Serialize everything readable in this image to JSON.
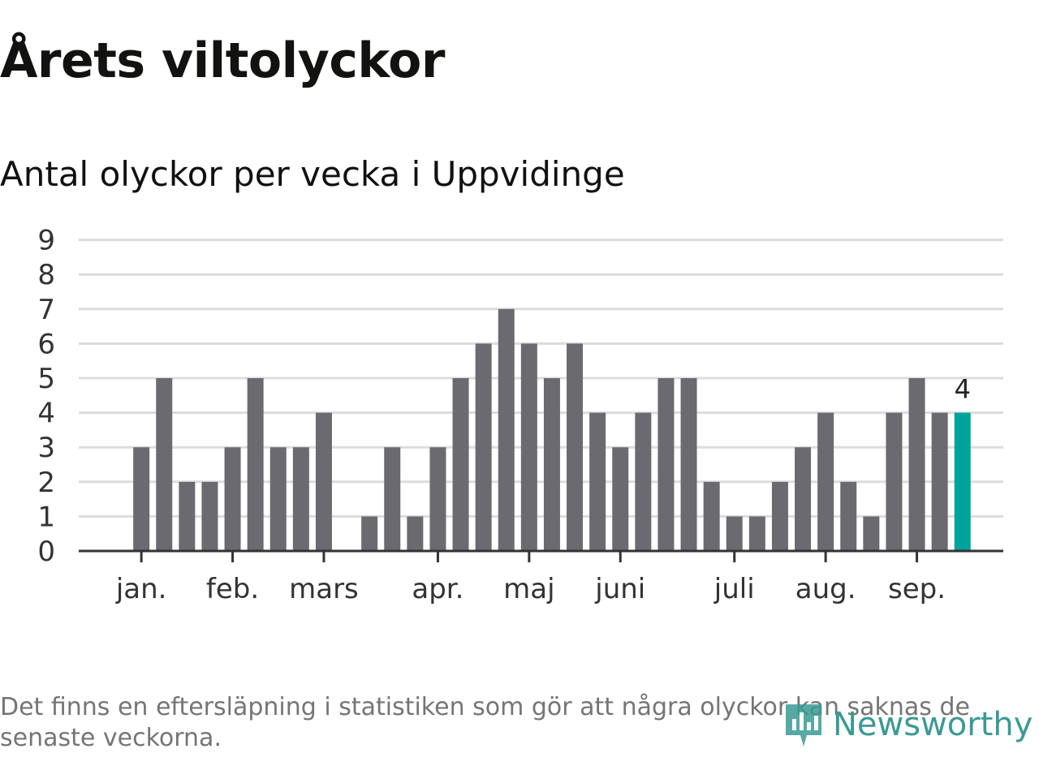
{
  "title": "Årets viltolyckor",
  "subtitle": "Antal olyckor per vecka i Uppvidinge",
  "footnote": "Det finns en eftersläpning i statistiken som gör att några olyckor kan saknas de senaste veckorna.",
  "brand": {
    "name": "Newsworthy",
    "icon": "newsworthy-logo-icon",
    "color": "#3a9a94"
  },
  "colors": {
    "bar": "#6b6a70",
    "highlight": "#00a39a",
    "grid": "#dcdcdc",
    "axis": "#333333"
  },
  "chart_data": {
    "type": "bar",
    "values": [
      0,
      3,
      5,
      2,
      2,
      3,
      5,
      3,
      3,
      4,
      0,
      1,
      3,
      1,
      3,
      5,
      6,
      7,
      6,
      5,
      6,
      4,
      3,
      4,
      5,
      5,
      2,
      1,
      1,
      2,
      3,
      4,
      2,
      1,
      4,
      5,
      4,
      4
    ],
    "highlight_index": 37,
    "highlight_label": "4",
    "month_ticks": [
      {
        "label": "jan.",
        "index": 1
      },
      {
        "label": "feb.",
        "index": 5
      },
      {
        "label": "mars",
        "index": 9
      },
      {
        "label": "apr.",
        "index": 14
      },
      {
        "label": "maj",
        "index": 18
      },
      {
        "label": "juni",
        "index": 22
      },
      {
        "label": "juli",
        "index": 27
      },
      {
        "label": "aug.",
        "index": 31
      },
      {
        "label": "sep.",
        "index": 35
      }
    ],
    "yticks": [
      "0",
      "1",
      "2",
      "3",
      "4",
      "5",
      "6",
      "7",
      "8",
      "9"
    ],
    "ylim": [
      0,
      9
    ],
    "grid": true
  }
}
